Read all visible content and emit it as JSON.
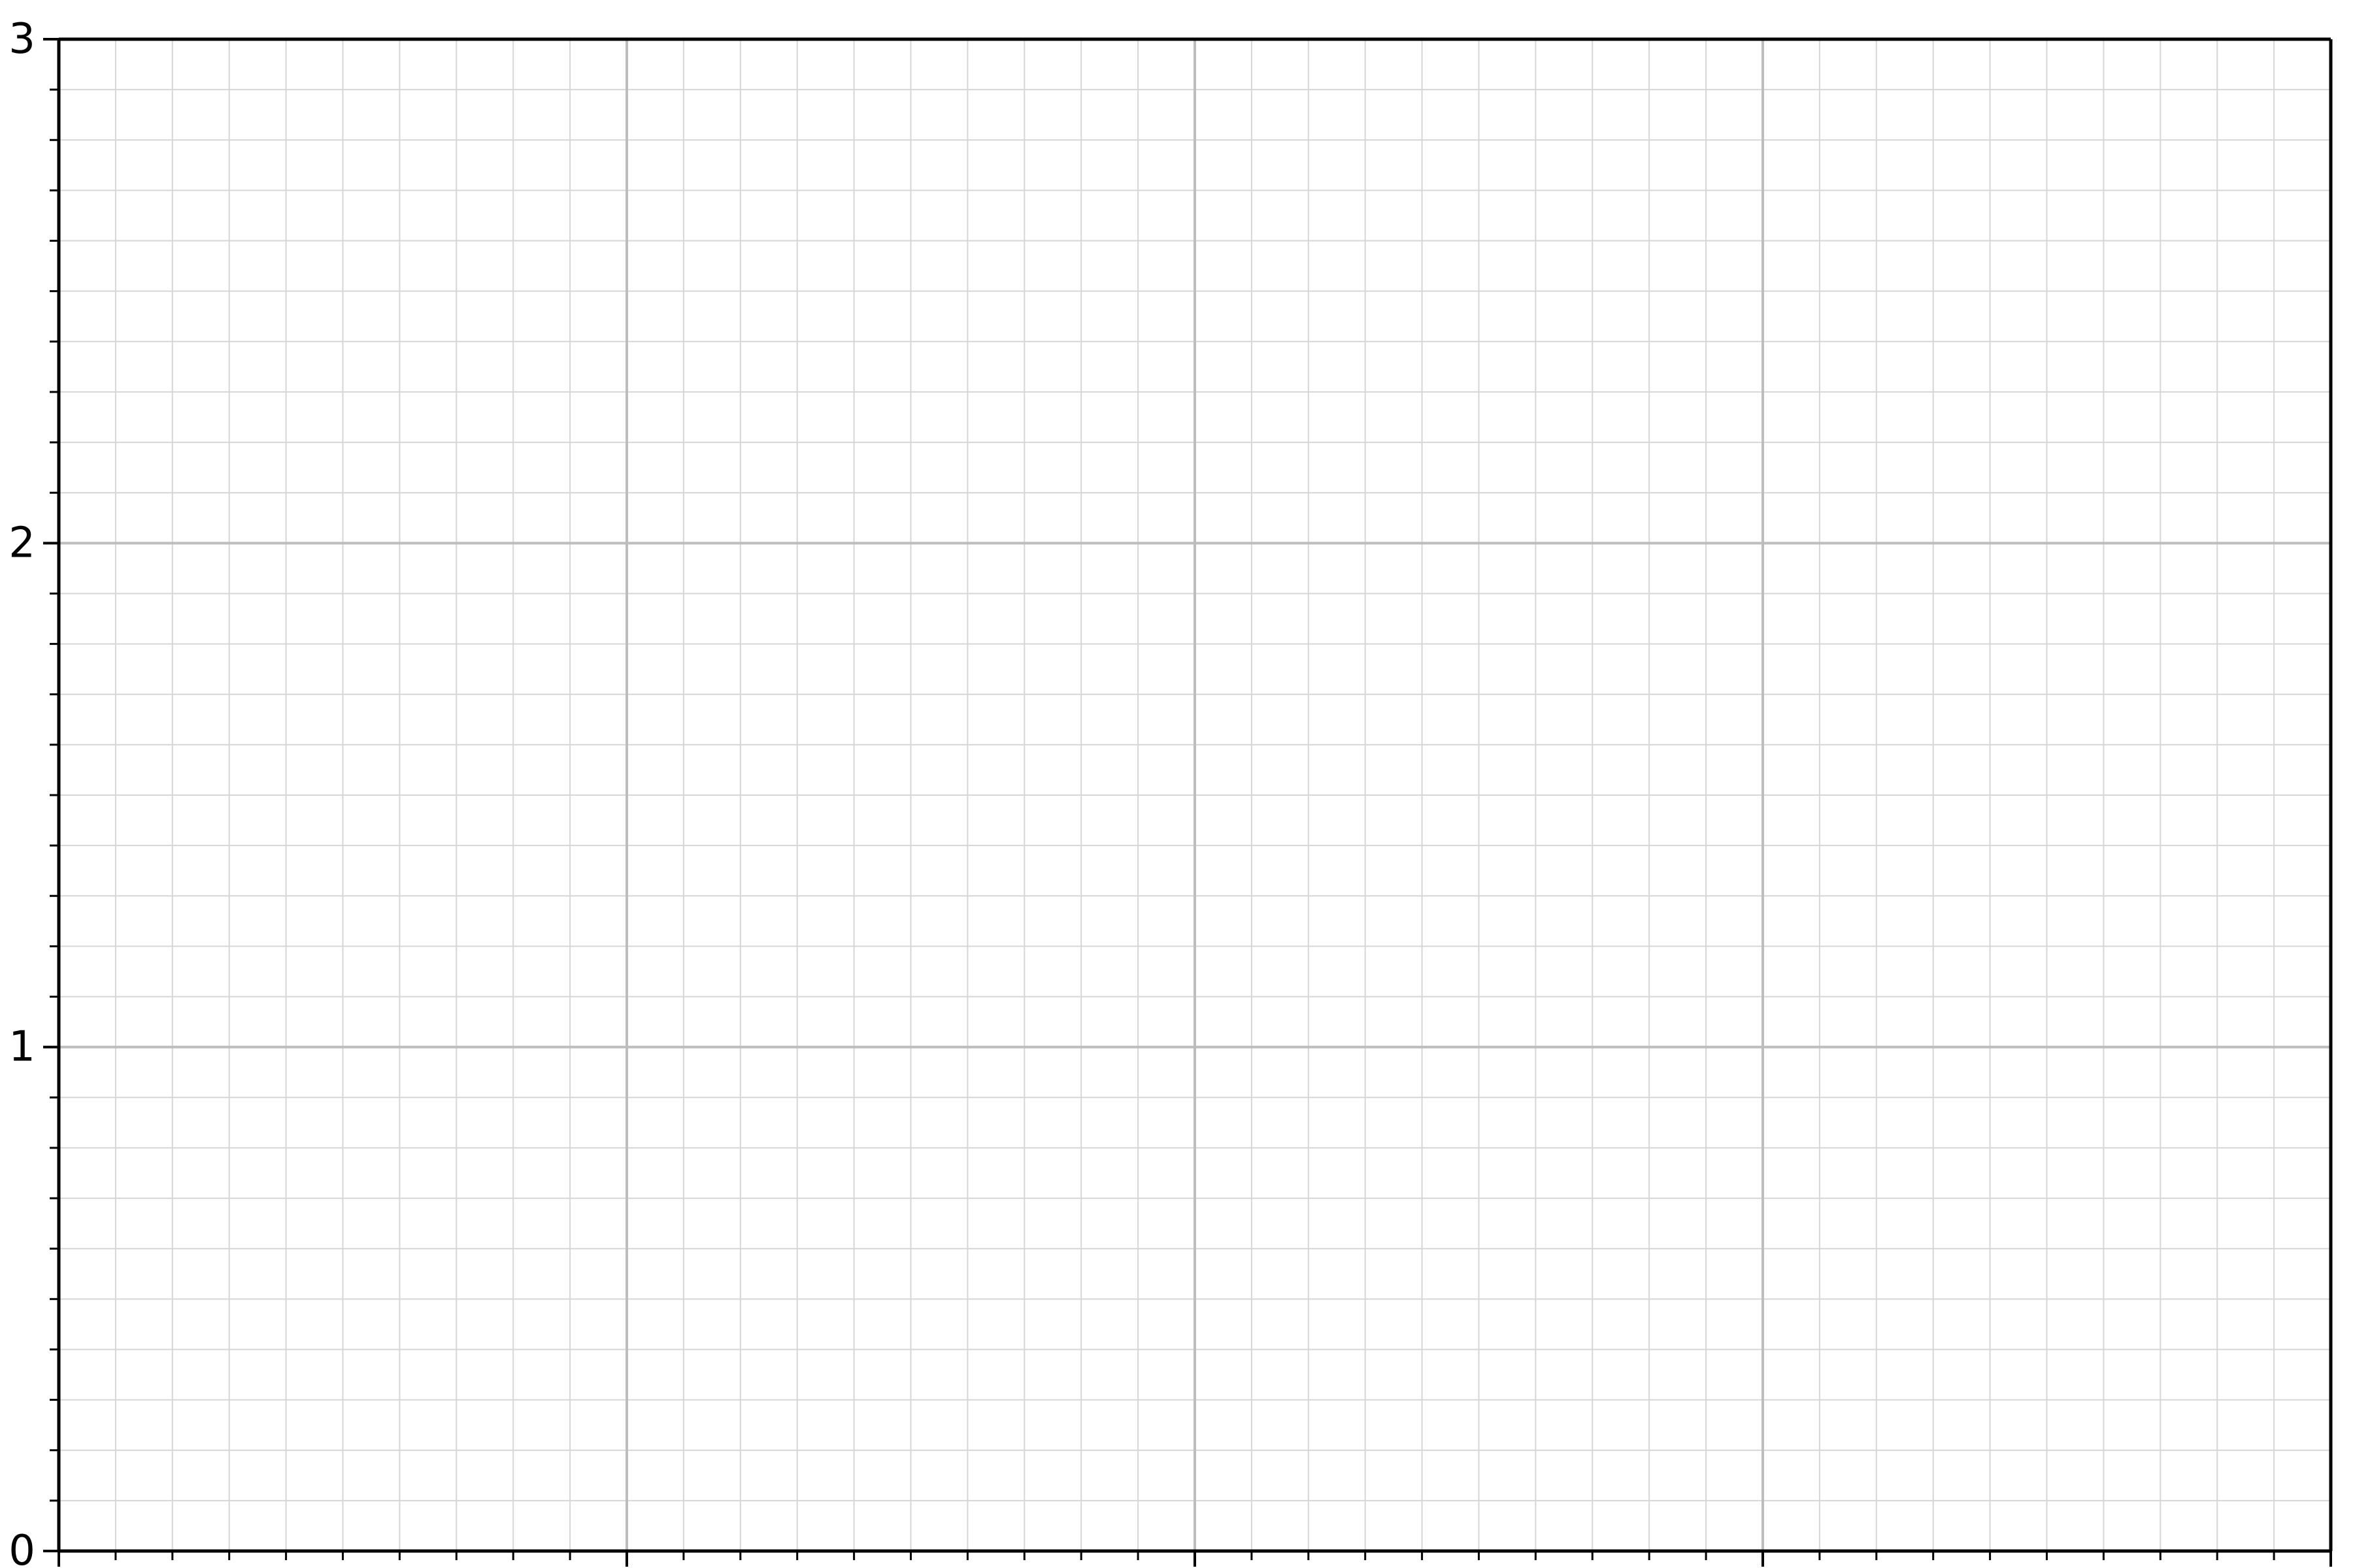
{
  "chart_data": {
    "type": "line",
    "title": "",
    "xlabel": "",
    "ylabel": "",
    "xlim": [
      0,
      4
    ],
    "ylim": [
      0,
      3
    ],
    "x_major_ticks": [
      0,
      1,
      2,
      3,
      4
    ],
    "x_minor_per_major": 10,
    "y_major_ticks": [
      0,
      1,
      2,
      3
    ],
    "y_minor_per_major": 10,
    "y_tick_labels": [
      "0",
      "1",
      "2",
      "3"
    ],
    "grid": "major and minor",
    "series": [],
    "colors": {
      "axis": "#000000",
      "major_grid": "#bdbdbd",
      "minor_grid": "#d6d6d6",
      "background": "#ffffff"
    }
  }
}
